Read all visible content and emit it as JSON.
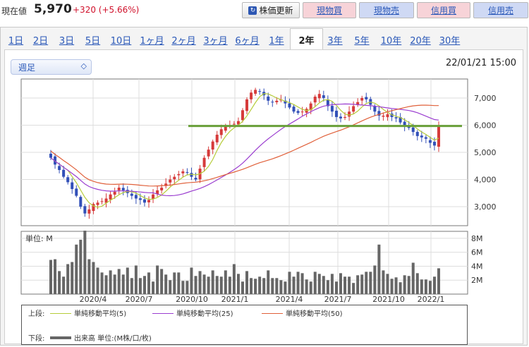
{
  "header": {
    "label": "現在値",
    "price": "5,970",
    "change": "+320 (+5.66%)",
    "update_button": "株価更新",
    "buttons": [
      "現物買",
      "現物売",
      "信用買",
      "信用売"
    ]
  },
  "tabs": [
    "1日",
    "2日",
    "3日",
    "5日",
    "10日",
    "1ヶ月",
    "2ヶ月",
    "3ヶ月",
    "6ヶ月",
    "1年",
    "2年",
    "3年",
    "5年",
    "10年",
    "20年",
    "30年"
  ],
  "selected_tab": "2年",
  "selector": {
    "value": "週足"
  },
  "datetime": "22/01/21 15:00",
  "volume_unit_label": "単位: M",
  "legend": {
    "upper_label": "上段:",
    "lower_label": "下段:",
    "ma5": "単純移動平均(5)",
    "ma25": "単純移動平均(25)",
    "ma50": "単純移動平均(50)",
    "volume": "出来高 単位:(M株/口/枚)"
  },
  "colors": {
    "up": "#d63a3a",
    "down": "#3250b8",
    "ma5": "#b6cc3a",
    "ma25": "#9b3ed0",
    "ma50": "#e0603a",
    "hline": "#6aa03a",
    "volume": "#666666"
  },
  "chart_data": [
    {
      "type": "candlestick",
      "x_ticks": [
        "2020/4",
        "2020/7",
        "2020/10",
        "2021/1",
        "2021/4",
        "2021/7",
        "2021/10",
        "2022/1"
      ],
      "y_ticks": [
        "3,000",
        "4,000",
        "5,000",
        "6,000",
        "7,000"
      ],
      "ylim": [
        2300,
        7700
      ],
      "horizontal_line": 5970,
      "weekly_closes": [
        4800,
        4550,
        4350,
        4100,
        3900,
        3650,
        3400,
        3000,
        2750,
        2900,
        3100,
        3150,
        3200,
        3300,
        3450,
        3550,
        3700,
        3600,
        3500,
        3400,
        3300,
        3250,
        3150,
        3250,
        3450,
        3600,
        3700,
        3850,
        4000,
        4100,
        4200,
        4300,
        4250,
        4100,
        4000,
        4400,
        4800,
        5100,
        5400,
        5650,
        5850,
        5950,
        6000,
        6050,
        6150,
        6550,
        6950,
        7200,
        7300,
        7250,
        7100,
        6900,
        6850,
        6900,
        6950,
        6800,
        6650,
        6500,
        6450,
        6500,
        6600,
        6800,
        7050,
        7150,
        7000,
        6700,
        6500,
        6300,
        6250,
        6300,
        6500,
        6700,
        6850,
        7000,
        6950,
        6750,
        6500,
        6350,
        6350,
        6400,
        6300,
        6250,
        6100,
        5950,
        5900,
        5750,
        5600,
        5550,
        5500,
        5350,
        5250,
        5970
      ],
      "series": [
        {
          "name": "単純移動平均(5)"
        },
        {
          "name": "単純移動平均(25)"
        },
        {
          "name": "単純移動平均(50)"
        }
      ]
    },
    {
      "type": "bar",
      "title": "単位: M",
      "y_ticks": [
        "2M",
        "4M",
        "6M",
        "8M"
      ],
      "ylim": [
        0,
        9
      ],
      "x_ticks": [
        "2020/4",
        "2020/7",
        "2020/10",
        "2021/1",
        "2021/4",
        "2021/7",
        "2021/10",
        "2022/1"
      ],
      "values": [
        4.9,
        5.0,
        3.3,
        2.5,
        4.3,
        4.6,
        7.1,
        7.8,
        9.1,
        5.0,
        4.6,
        3.8,
        3.1,
        2.7,
        3.4,
        2.8,
        3.6,
        2.8,
        3.8,
        2.3,
        4.1,
        2.3,
        2.6,
        3.1,
        1.8,
        4.1,
        3.6,
        2.8,
        2.0,
        3.1,
        3.1,
        1.9,
        1.9,
        3.8,
        2.6,
        3.3,
        2.8,
        2.5,
        3.4,
        2.6,
        2.5,
        3.4,
        2.5,
        4.3,
        2.9,
        1.8,
        3.3,
        2.3,
        2.2,
        2.5,
        2.3,
        3.4,
        2.3,
        2.3,
        2.0,
        1.8,
        3.2,
        2.5,
        3.2,
        3.0,
        2.1,
        1.8,
        3.2,
        2.9,
        2.6,
        2.0,
        2.9,
        1.8,
        3.0,
        2.5,
        2.5,
        1.6,
        2.7,
        2.8,
        3.2,
        3.2,
        4.1,
        7.1,
        3.4,
        2.9,
        2.2,
        2.4,
        1.7,
        2.7,
        2.6,
        4.5,
        3.0,
        2.1,
        2.1,
        1.9,
        2.5,
        3.7
      ]
    }
  ]
}
